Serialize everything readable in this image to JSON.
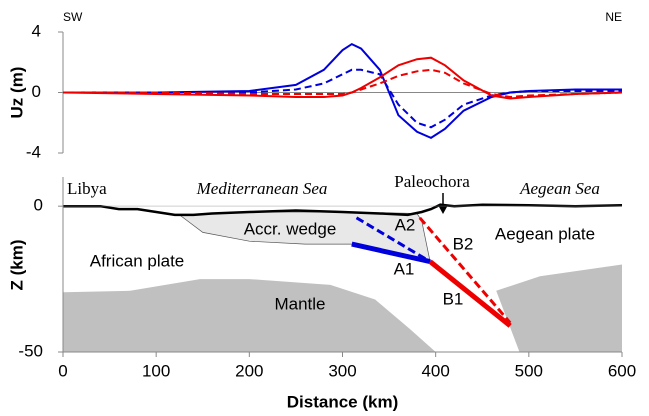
{
  "chart_data": [
    {
      "type": "line",
      "ylabel": "Uz (m)",
      "left_label": "SW",
      "right_label": "NE",
      "ylim": [
        -4,
        4
      ],
      "yticks": [
        -4,
        0,
        4
      ],
      "xlim": [
        0,
        600
      ],
      "x": [
        0,
        100,
        200,
        250,
        280,
        300,
        310,
        320,
        340,
        360,
        380,
        395,
        410,
        430,
        460,
        480,
        500,
        550,
        600
      ],
      "series": [
        {
          "color": "#0000dd",
          "dashed": false,
          "values": [
            0,
            0,
            0.1,
            0.5,
            1.5,
            2.8,
            3.2,
            2.9,
            1.5,
            -1.5,
            -2.6,
            -3.0,
            -2.4,
            -1.2,
            -0.3,
            0,
            0.1,
            0.2,
            0.2
          ]
        },
        {
          "color": "#0000dd",
          "dashed": true,
          "values": [
            0,
            0,
            0,
            0.2,
            0.6,
            1.2,
            1.5,
            1.5,
            1.2,
            -0.8,
            -2.0,
            -2.3,
            -1.8,
            -0.8,
            -0.2,
            0,
            0.1,
            0.1,
            0.1
          ]
        },
        {
          "color": "#ee0000",
          "dashed": false,
          "values": [
            0,
            -0.1,
            -0.2,
            -0.3,
            -0.3,
            -0.2,
            0,
            0.3,
            1.0,
            1.8,
            2.2,
            2.3,
            1.8,
            0.8,
            -0.2,
            -0.4,
            -0.3,
            -0.1,
            0
          ]
        },
        {
          "color": "#ee0000",
          "dashed": true,
          "values": [
            0,
            0,
            -0.1,
            -0.1,
            -0.1,
            -0.1,
            0,
            0.2,
            0.6,
            1.1,
            1.4,
            1.5,
            1.3,
            0.6,
            -0.1,
            -0.3,
            -0.2,
            -0.1,
            0
          ]
        }
      ]
    },
    {
      "type": "cross-section",
      "xlabel": "Distance (km)",
      "ylabel": "Z (km)",
      "xlim": [
        0,
        600
      ],
      "xticks": [
        0,
        100,
        200,
        300,
        400,
        500,
        600
      ],
      "ylim": [
        -50,
        10
      ],
      "yticks": [
        -50,
        0
      ],
      "regions": [
        {
          "color": "#c0c0c0",
          "x": [
            0,
            72,
            147,
            200,
            287,
            335,
            372,
            400,
            0
          ],
          "z": [
            -29.5,
            -29,
            -25,
            -25,
            -27,
            -32,
            -42,
            -50,
            -50
          ]
        },
        {
          "color": "#c0c0c0",
          "x": [
            465,
            512,
            600,
            600,
            490
          ],
          "z": [
            -29,
            -24,
            -20,
            -50,
            -50
          ]
        },
        {
          "color": "#e8e8e8",
          "x": [
            125,
            150,
            200,
            260,
            310,
            394,
            385,
            380,
            300,
            200,
            140
          ],
          "z": [
            -3,
            -9,
            -12,
            -13,
            -13,
            -19,
            -5,
            -2.5,
            -2,
            -2,
            -3
          ]
        }
      ],
      "topography": {
        "color": "#000000",
        "x": [
          0,
          20,
          40,
          60,
          80,
          100,
          120,
          140,
          160,
          200,
          250,
          300,
          340,
          370,
          385,
          395,
          405,
          420,
          450,
          500,
          550,
          600
        ],
        "z": [
          0,
          0,
          0,
          -1,
          -1,
          -2,
          -3,
          -3,
          -2.5,
          -2,
          -1.5,
          -2,
          -2.5,
          -3,
          -2,
          -1,
          0.5,
          0,
          0.5,
          0.3,
          0,
          0.3
        ]
      },
      "faults": [
        {
          "label": "A1",
          "color": "#0000dd",
          "dashed": false,
          "x": [
            310,
            394
          ],
          "z": [
            -13,
            -19
          ]
        },
        {
          "label": "A2",
          "color": "#0000dd",
          "dashed": true,
          "x": [
            315,
            394
          ],
          "z": [
            -4,
            -19
          ]
        },
        {
          "label": "B1",
          "color": "#ee0000",
          "dashed": false,
          "x": [
            394,
            480
          ],
          "z": [
            -19,
            -41
          ]
        },
        {
          "label": "B2",
          "color": "#ee0000",
          "dashed": true,
          "x": [
            383,
            480
          ],
          "z": [
            -4,
            -40
          ]
        }
      ],
      "annotations": [
        "Libya",
        "Mediterranean Sea",
        "Paleochora",
        "Aegean Sea",
        "Accr. wedge",
        "African plate",
        "Aegean plate",
        "Mantle"
      ]
    }
  ]
}
